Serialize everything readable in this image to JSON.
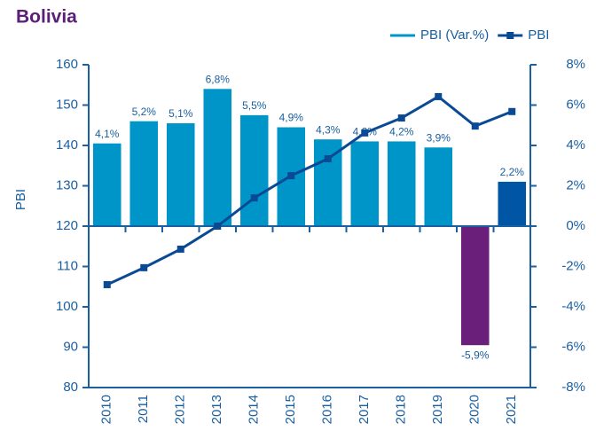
{
  "chart_data": {
    "type": "bar",
    "title": "Bolivia",
    "y_label": "PBI",
    "categories": [
      "2010",
      "2011",
      "2012",
      "2013",
      "2014",
      "2015",
      "2016",
      "2017",
      "2018",
      "2019",
      "2020",
      "2021"
    ],
    "series": [
      {
        "name": "PBI (Var.%)",
        "type": "bar",
        "axis": "y2",
        "color": "#0095c8",
        "colors": [
          "#0095c8",
          "#0095c8",
          "#0095c8",
          "#0095c8",
          "#0095c8",
          "#0095c8",
          "#0095c8",
          "#0095c8",
          "#0095c8",
          "#0095c8",
          "#6a1f7a",
          "#0055a5"
        ],
        "values": [
          4.1,
          5.2,
          5.1,
          6.8,
          5.5,
          4.9,
          4.3,
          4.2,
          4.2,
          3.9,
          -5.9,
          2.2
        ],
        "value_labels": [
          "4,1%",
          "5,2%",
          "5,1%",
          "6,8%",
          "5,5%",
          "4,9%",
          "4,3%",
          "4,2%",
          "4,2%",
          "3,9%",
          "-5,9%",
          "2,2%"
        ]
      },
      {
        "name": "PBI",
        "type": "line",
        "axis": "y",
        "color": "#0a4a94",
        "values": [
          105.5,
          109.7,
          114.3,
          120,
          127,
          132.5,
          136.7,
          143.1,
          146.8,
          152.1,
          144.8,
          148.4
        ]
      }
    ],
    "ylim": [
      80,
      160
    ],
    "yticks": [
      80,
      90,
      100,
      110,
      120,
      130,
      140,
      150,
      160
    ],
    "y2lim": [
      -8,
      8
    ],
    "y2ticks": [
      {
        "value": -8,
        "label": "-8%"
      },
      {
        "value": -6,
        "label": "-6%"
      },
      {
        "value": -4,
        "label": "-4%"
      },
      {
        "value": -2,
        "label": "-2%"
      },
      {
        "value": 0,
        "label": "0%"
      },
      {
        "value": 2,
        "label": "2%"
      },
      {
        "value": 4,
        "label": "4%"
      },
      {
        "value": 6,
        "label": "6%"
      },
      {
        "value": 8,
        "label": "8%"
      }
    ],
    "legend": "top-right"
  }
}
